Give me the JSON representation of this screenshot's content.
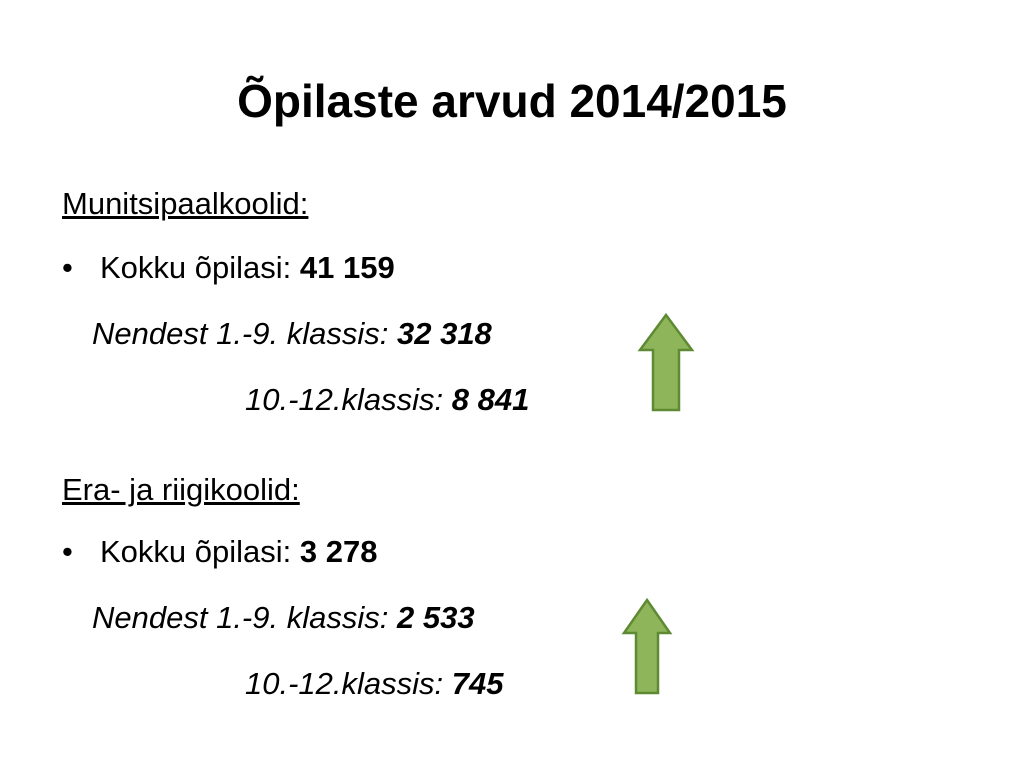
{
  "title": "Õpilaste arvud 2014/2015",
  "sections": [
    {
      "heading": "Munitsipaalkoolid:",
      "total_label": "Kokku õpilasi:",
      "total_value": "41 159",
      "lines": [
        {
          "label": "Nendest 1.-9. klassis:",
          "value": "32 318"
        },
        {
          "label": "10.-12.klassis:",
          "value": "8 841"
        }
      ]
    },
    {
      "heading": "Era- ja riigikoolid:",
      "total_label": "Kokku õpilasi:",
      "total_value": "3 278",
      "lines": [
        {
          "label": "Nendest 1.-9. klassis:",
          "value": "2 533"
        },
        {
          "label": "10.-12.klassis:",
          "value": "745"
        }
      ]
    }
  ]
}
